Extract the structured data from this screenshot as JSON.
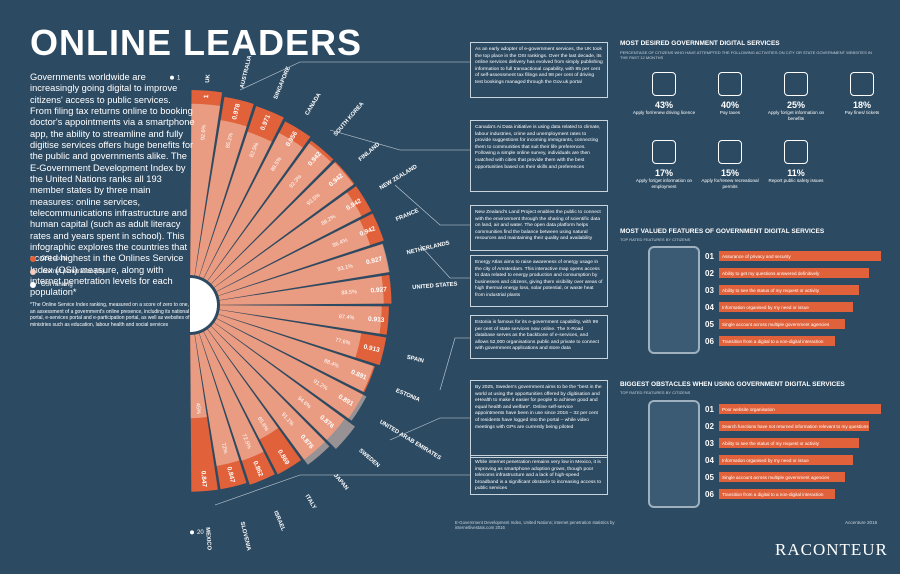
{
  "header": {
    "title": "ONLINE LEADERS",
    "intro": "Governments worldwide are increasingly going digital to improve citizens' access to public services. From filing tax returns online to booking doctor's appointments via a smartphone app, the ability to streamline and fully digitise services offers huge benefits for the public and governments alike. The E-Government Development Index by the United Nations ranks all 193 member states by three main measures: online services, telecommunications infrastructure and human capital (such as adult literacy rates and years spent in school). This infographic explores the countries that scored highest in the Onlines Service Index (OSI) measure, along with internet penetration levels for each population*",
    "footnote": "*The Online Service Index ranking, measured on a score of zero to one, is an assessment of a government's online presence, including its national portal, e-services portal and e-participation portal, as well as websites of ministries such as education, labour health and social services"
  },
  "chart_data": {
    "type": "radial-bar",
    "categories": [
      "UK",
      "AUSTRALIA",
      "SINGAPORE",
      "CANADA",
      "SOUTH KOREA",
      "FINLAND",
      "NEW ZEALAND",
      "FRANCE",
      "NETHERLANDS",
      "UNITED STATES",
      null,
      "SPAIN",
      "ESTONIA",
      "UNITED ARAB EMIRATES",
      "SWEDEN",
      "JAPAN",
      "ITALY",
      "ISRAEL",
      "SLOVENIA",
      "MEXICO"
    ],
    "series": [
      {
        "name": "OSI score",
        "color": "#e0613a",
        "values": [
          1,
          0.978,
          0.971,
          0.956,
          0.942,
          0.942,
          0.942,
          0.942,
          0.927,
          0.927,
          0.913,
          0.913,
          0.891,
          0.891,
          0.876,
          0.876,
          0.869,
          0.862,
          0.847,
          0.847
        ]
      },
      {
        "name": "Internet penetration (%)",
        "color": "#f3cdbd",
        "axis": "y2",
        "values": [
          92.6,
          85.1,
          82.5,
          88.5,
          92.3,
          93.5,
          88.2,
          86.4,
          93.1,
          88.5,
          87.4,
          77.6,
          88.4,
          91.2,
          94.6,
          91.1,
          65.6,
          72.5,
          72,
          45
        ],
        "value_labels": [
          "92.6%",
          "85.1%",
          "82.5%",
          "88.5%",
          "92.3%",
          "93.5%",
          "88.2%",
          "86.4%",
          "93.1%",
          "88.5%",
          "87.4%",
          "77.6%",
          "88.4%",
          "91.2%",
          "94.6%",
          "91.1%",
          "65.6%",
          "72.5%",
          "72%",
          "45%"
        ]
      },
      {
        "name": "OSI ranking",
        "color": "#ffffff",
        "values": [
          1,
          null,
          null,
          null,
          null,
          null,
          null,
          null,
          null,
          null,
          null,
          null,
          null,
          null,
          null,
          null,
          null,
          null,
          null,
          20
        ]
      }
    ],
    "ylim": [
      0,
      1
    ],
    "y2lim": [
      0,
      100
    ]
  },
  "panels": [
    "As an early adopter of e-government services, the UK took the top place in the OSI rankings. Over the last decade, its online services delivery has evolved from simply publishing information to full transactional capability, with 85 per cent of self-assessment tax filings and 98 per cent of driving test bookings managed through the Gov.uk portal",
    "Canada's Ai Data initiative is using data related to climate, labour industries, crime and unemployment rates to provide suggestions for incoming immigrants, connecting them to communities that suit their life preferences. Following a simple online survey, individuals are then matched with cities that provide them with the best opportunities based on their skills and preferences",
    "New Zealand's Land Project enables the public to connect with the environment through the sharing of scientific data on land, air and water. The open data platform helps communities find the balance between using natural resources and maintaining their quality and availability",
    "Energy Atlas aims to raise awareness of energy usage in the city of Amsterdam. This interactive map opens access to data related to energy production and consumption by businesses and citizens, giving them visibility over areas of high thermal energy loss, solar potential, or waste heat from industrial plants",
    "Estonia is famous for its e-government capability, with 99 per cent of state services now online. The X-Road database serves as the backbone of e-services, and allows 52,000 organisations public and private to connect with government applications and store data",
    "By 2025, Sweden's government aims to be the \"best in the world at using the opportunities offered by digitisation and eHealth to make it easier for people to achieve good and equal health and welfare\". Online self-service appointments have been in use since 2016 – 32 per cent of residents have logged into the portal – while video meetings with GPs are currently being piloted",
    "While internet penetration remains very low in Mexico, it is improving as smartphone adoption grows, though poor telecoms infrastructure and a lack of high-speed broadband is a significant obstacle to increasing access to public services"
  ],
  "desired": {
    "title": "MOST DESIRED GOVERNMENT DIGITAL SERVICES",
    "subtitle": "PERCENTAGE OF CITIZENS WHO HAVE ATTEMPTED THE FOLLOWING ACTIVITIES ON CITY OR STATE GOVERNMENT WEBSITES IN THE PAST 12 MONTHS",
    "items": [
      {
        "value": "43%",
        "label": "Apply for/renew driving licence"
      },
      {
        "value": "40%",
        "label": "Pay taxes"
      },
      {
        "value": "25%",
        "label": "Apply for/get information on benefits"
      },
      {
        "value": "18%",
        "label": "Pay fines/ tickets"
      },
      {
        "value": "17%",
        "label": "Apply for/get information on employment"
      },
      {
        "value": "15%",
        "label": "Apply for/renew recreational permits"
      },
      {
        "value": "11%",
        "label": "Report public safety issues"
      }
    ]
  },
  "valued": {
    "title": "MOST VALUED FEATURES OF GOVERNMENT DIGITAL SERVICES",
    "subtitle": "TOP RATED FEATURES BY CITIZENS",
    "items": [
      {
        "num": "01",
        "label": "Assurance of privacy and security"
      },
      {
        "num": "02",
        "label": "Ability to get my questions answered definitively"
      },
      {
        "num": "03",
        "label": "Ability to see the status of my request or activity"
      },
      {
        "num": "04",
        "label": "Information organised by my need or issue"
      },
      {
        "num": "05",
        "label": "Single account across multiple government agencies"
      },
      {
        "num": "06",
        "label": "Transition from a digital to a non-digital interaction"
      }
    ]
  },
  "obstacles": {
    "title": "BIGGEST OBSTACLES WHEN USING GOVERNMENT DIGITAL SERVICES",
    "subtitle": "TOP RATED FEATURES BY CITIZENS",
    "items": [
      {
        "num": "01",
        "label": "Poor website organisation"
      },
      {
        "num": "02",
        "label": "Search functions have not returned information relevant to my questions"
      },
      {
        "num": "03",
        "label": "Ability to see the status of my request or activity"
      },
      {
        "num": "04",
        "label": "Information organised by my need or issue"
      },
      {
        "num": "05",
        "label": "Single account across multiple government agencies"
      },
      {
        "num": "06",
        "label": "Transition from a digital to a non-digital interaction"
      }
    ]
  },
  "footer": {
    "source": "E-Government Development Index, United Nations; internet penetration statistics by internetlivestats.com 2016",
    "credit": "Accenture 2016",
    "brand": "RACONTEUR"
  }
}
